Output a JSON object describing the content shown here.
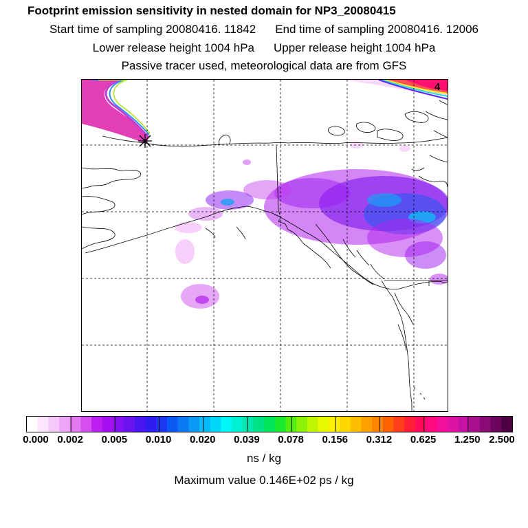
{
  "header": {
    "title": "Footprint emission sensitivity in nested domain for NP3_20080415",
    "start_time": "Start time of sampling 20080416. 11842",
    "end_time": "End time of sampling 20080416. 12006",
    "lower_release": "Lower release height 1004 hPa",
    "upper_release": "Upper release height 1004 hPa",
    "tracer_note": "Passive tracer used, meteorological data are from GFS"
  },
  "map": {
    "panel_number": "4",
    "grid_style": "dashed",
    "coastline_color": "#000000"
  },
  "colorbar": {
    "ticks": [
      "0.000",
      "0.002",
      "0.005",
      "0.010",
      "0.020",
      "0.039",
      "0.078",
      "0.156",
      "0.312",
      "0.625",
      "1.250",
      "2.500"
    ],
    "unit": "ns / kg",
    "colors": [
      "#ffffff",
      "#fde6fd",
      "#f7c8fa",
      "#efa5f7",
      "#e479f2",
      "#d64ef0",
      "#bd1ef2",
      "#a60ff2",
      "#8513f1",
      "#6a14f0",
      "#4a16ef",
      "#2f1cf1",
      "#1c37f3",
      "#0a5bf4",
      "#0c7bf3",
      "#099af5",
      "#04b9f7",
      "#00d7f8",
      "#00f6f8",
      "#00f0d6",
      "#00e6b0",
      "#00e283",
      "#00e45a",
      "#1ae92c",
      "#54ee0c",
      "#8cf104",
      "#bff600",
      "#e6f900",
      "#fcf000",
      "#ffd700",
      "#ffbe00",
      "#ffa100",
      "#ff8400",
      "#ff6200",
      "#ff3e1a",
      "#ff1e36",
      "#ff0a5c",
      "#ff0a80",
      "#f40f9a",
      "#de13a6",
      "#c613a6",
      "#a8108e",
      "#8a0a76",
      "#6c055e",
      "#4e0245"
    ]
  },
  "footer": {
    "max_value": "Maximum value  0.146E+02 ps / kg"
  }
}
